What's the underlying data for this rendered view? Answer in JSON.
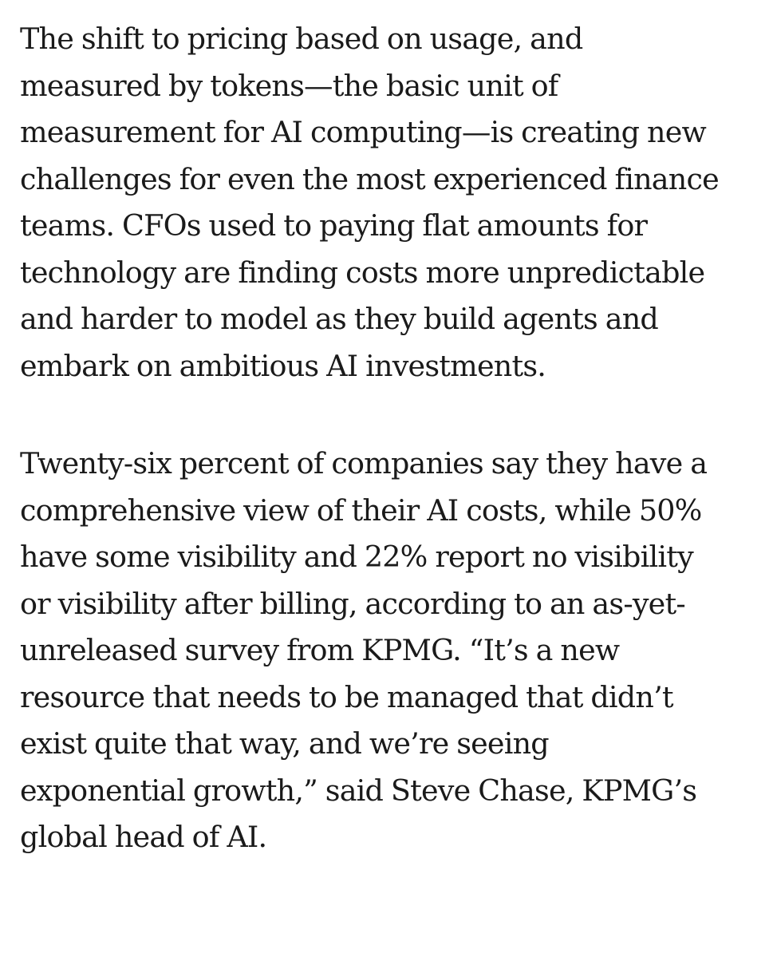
{
  "article": {
    "paragraphs": [
      {
        "lines": [
          "The shift to pricing based on usage, and",
          "measured by tokens—the basic unit of",
          "measurement for AI computing—is creating new",
          "challenges for even the most experienced finance",
          "teams. CFOs used to paying flat amounts for",
          "technology are finding costs more unpredictable",
          "and harder to model as they build agents and",
          "embark on ambitious AI investments."
        ]
      },
      {
        "lines": [
          "Twenty-six percent of companies say they have a",
          "comprehensive view of their AI costs, while 50%",
          "have some visibility and 22% report no visibility",
          "or visibility after billing, according to an as-yet-",
          "unreleased survey from KPMG. “It’s a new",
          "resource that needs to be managed that didn’t",
          "exist quite that way, and we’re seeing",
          "exponential growth,” said Steve Chase, KPMG’s",
          "global head of AI."
        ]
      }
    ]
  }
}
